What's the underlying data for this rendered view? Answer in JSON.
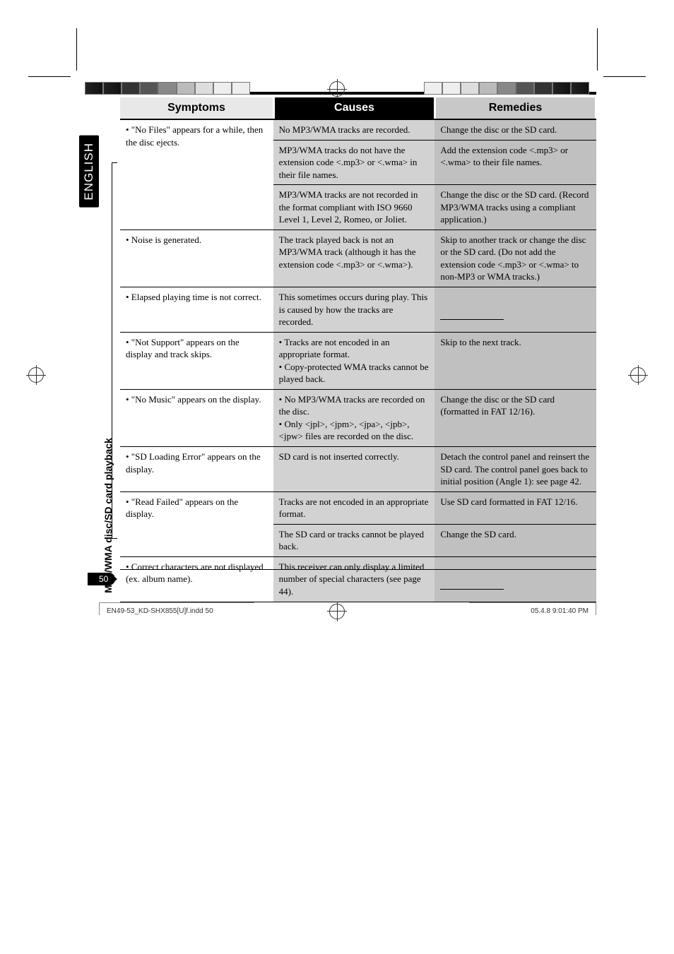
{
  "lang_tab": "ENGLISH",
  "side_label": "MP3/WMA disc/SD card playback",
  "headers": {
    "symptoms": "Symptoms",
    "causes": "Causes",
    "remedies": "Remedies"
  },
  "rows": [
    {
      "sym": "• \"No Files\" appears for a while, then the disc ejects.",
      "cause": "No MP3/WMA tracks are recorded.",
      "rem": "Change the disc or the SD card.",
      "sym_rowspan": 3
    },
    {
      "cause": "MP3/WMA tracks do not have the extension code <.mp3> or <.wma> in their file names.",
      "rem": "Add the extension code <.mp3> or <.wma> to their file names."
    },
    {
      "cause": "MP3/WMA tracks are not recorded in the format compliant with ISO 9660 Level 1, Level 2, Romeo, or Joliet.",
      "rem": "Change the disc or the SD card. (Record MP3/WMA tracks using a compliant application.)"
    },
    {
      "sym": "• Noise is generated.",
      "cause": "The track played back is not an MP3/WMA track (although it has the extension code <.mp3> or <.wma>).",
      "rem": "Skip to another track or change the disc or the SD card. (Do not add the extension code <.mp3> or <.wma> to non-MP3 or WMA tracks.)"
    },
    {
      "sym": "• Elapsed playing time is not correct.",
      "cause": "This sometimes occurs during play. This is caused by how the tracks are recorded.",
      "rem": "",
      "rem_rule": true
    },
    {
      "sym": "• \"Not Support\" appears on the display and track skips.",
      "cause": "• Tracks are not encoded in an appropriate format.\n• Copy-protected WMA tracks cannot be played back.",
      "rem": "Skip to the next track."
    },
    {
      "sym": "• \"No Music\" appears on the display.",
      "cause": "• No MP3/WMA tracks are recorded on the disc.\n• Only <jpl>, <jpm>, <jpa>, <jpb>, <jpw> files are recorded on the disc.",
      "rem": "Change the disc or the SD card (formatted in FAT 12/16)."
    },
    {
      "sym": "• \"SD Loading Error\" appears on the display.",
      "cause": "SD card is not inserted correctly.",
      "rem": "Detach the control panel and reinsert the SD card. The control panel goes back to initial position (Angle 1): see page 42."
    },
    {
      "sym": "• \"Read Failed\" appears on the display.",
      "cause": "Tracks are not encoded in an appropriate format.",
      "rem": "Use SD card formatted in FAT 12/16.",
      "sym_rowspan": 2
    },
    {
      "cause": "The SD card or tracks cannot be played back.",
      "rem": "Change the SD card."
    },
    {
      "sym": "• Correct characters are not displayed (ex. album name).",
      "cause": "This receiver can only display a limited number of special characters (see page 44).",
      "rem": "",
      "rem_rule": true
    }
  ],
  "page_number": "50",
  "footer_left": "EN49-53_KD-SHX855[U]f.indd   50",
  "footer_right": "05.4.8   9:01:40 PM",
  "colors": {
    "header_causes_bg": "#000000",
    "header_sym_bg": "#e8e8e8",
    "header_rem_bg": "#c8c8c8",
    "cell_cause_bg": "#d2d2d2",
    "cell_rem_bg": "#c0c0c0"
  }
}
